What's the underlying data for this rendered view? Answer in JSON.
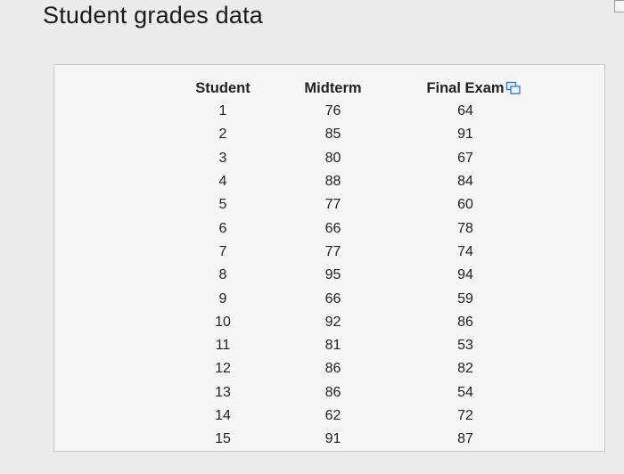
{
  "title": "Student grades data",
  "table": {
    "columns": [
      "Student",
      "Midterm",
      "Final Exam"
    ],
    "rows": [
      [
        "1",
        "76",
        "64"
      ],
      [
        "2",
        "85",
        "91"
      ],
      [
        "3",
        "80",
        "67"
      ],
      [
        "4",
        "88",
        "84"
      ],
      [
        "5",
        "77",
        "60"
      ],
      [
        "6",
        "66",
        "78"
      ],
      [
        "7",
        "77",
        "74"
      ],
      [
        "8",
        "95",
        "94"
      ],
      [
        "9",
        "66",
        "59"
      ],
      [
        "10",
        "92",
        "86"
      ],
      [
        "11",
        "81",
        "53"
      ],
      [
        "12",
        "86",
        "82"
      ],
      [
        "13",
        "86",
        "54"
      ],
      [
        "14",
        "62",
        "72"
      ],
      [
        "15",
        "91",
        "87"
      ]
    ]
  },
  "icons": {
    "copy": "copy-data-icon"
  },
  "colors": {
    "text": "#222222",
    "background": "#ececec",
    "panel": "#f6f6f6",
    "icon": "#3b7bd4"
  }
}
